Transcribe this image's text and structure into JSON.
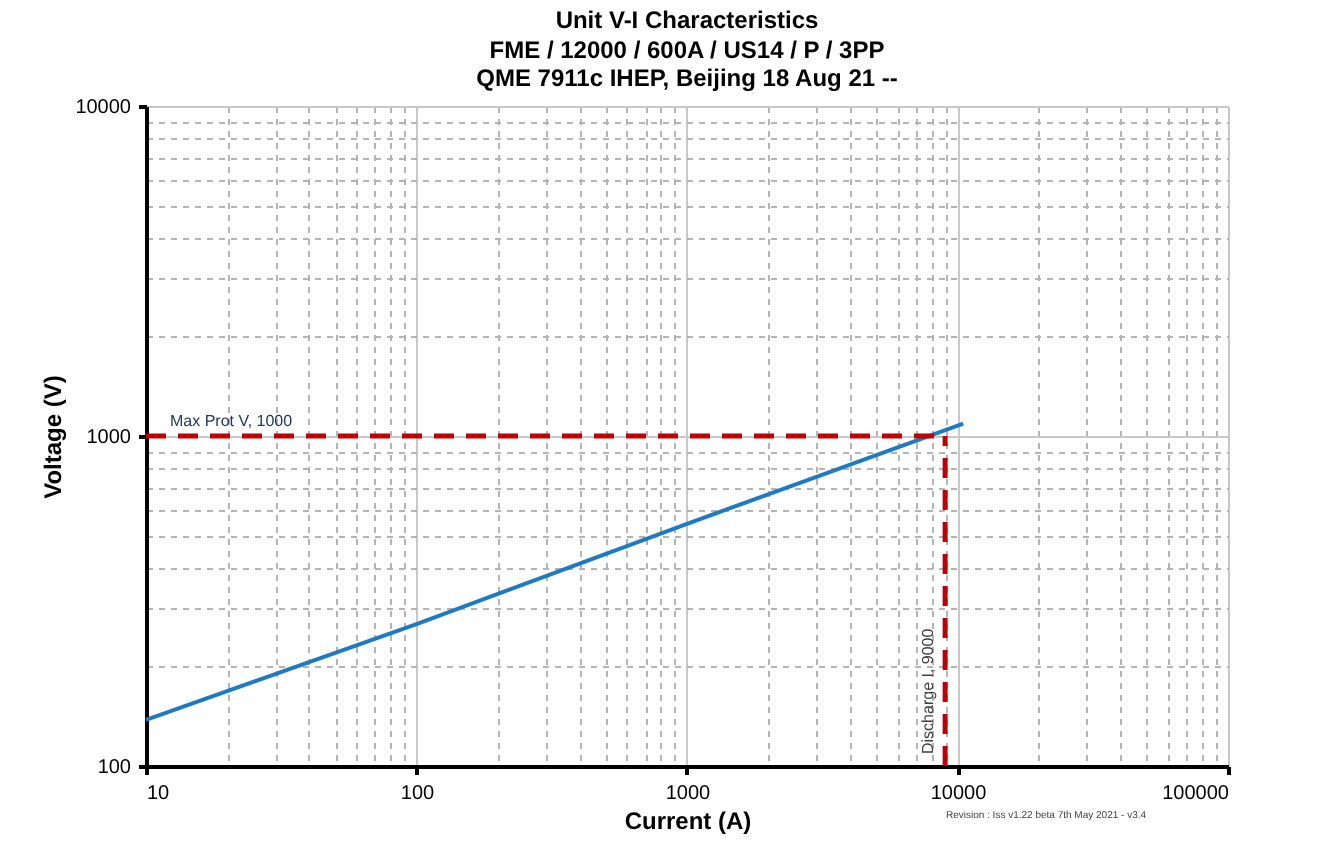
{
  "chart_data": {
    "type": "line",
    "title": "Unit V-I Characteristics",
    "subtitle": "FME / 12000 / 600A / US14 / P / 3PP\nQME 7911c IHEP, Beijing 18 Aug 21  --",
    "xlabel": "Current (A)",
    "ylabel": "Voltage (V)",
    "series": [
      {
        "color": "#1f7ac4",
        "x": [
          10,
          100,
          1000,
          10500
        ],
        "values": [
          138,
          269,
          542,
          1090
        ]
      }
    ],
    "log": "xy",
    "xlim": [
      10,
      100000
    ],
    "ylim": [
      100,
      10000
    ],
    "xticks": [
      10,
      100,
      1000,
      10000,
      100000
    ],
    "yticks": [
      100,
      1000,
      10000
    ],
    "grid": true,
    "ref_lines": [
      {
        "axis": "y",
        "value": 1000,
        "label": "Max Prot V, 1000",
        "color": "#c00000",
        "line_style": "dashed"
      },
      {
        "axis": "x",
        "value": 9000,
        "label": "Discharge I, 9000",
        "color": "#c00000",
        "line_style": "dashed"
      }
    ],
    "annotations": [
      "Revision :   Iss v1.22 beta   7th May 2021 - v3.4"
    ]
  }
}
